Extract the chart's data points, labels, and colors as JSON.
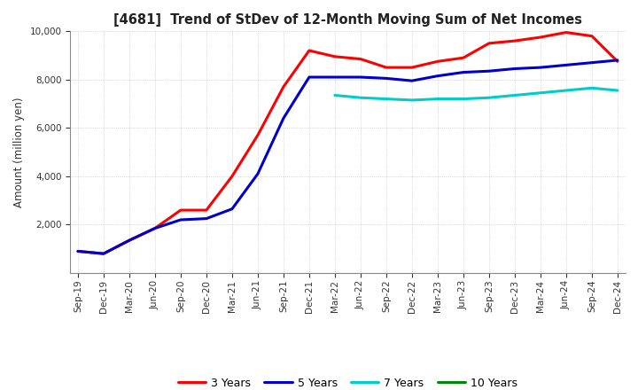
{
  "title": "[4681]  Trend of StDev of 12-Month Moving Sum of Net Incomes",
  "ylabel": "Amount (million yen)",
  "ylim": [
    0,
    10000
  ],
  "yticks": [
    2000,
    4000,
    6000,
    8000,
    10000
  ],
  "background_color": "#ffffff",
  "grid_color": "#aaaaaa",
  "legend_labels": [
    "3 Years",
    "5 Years",
    "7 Years",
    "10 Years"
  ],
  "legend_colors": [
    "#ff0000",
    "#0000cc",
    "#00cccc",
    "#008800"
  ],
  "x_labels": [
    "Sep-19",
    "Dec-19",
    "Mar-20",
    "Jun-20",
    "Sep-20",
    "Dec-20",
    "Mar-21",
    "Jun-21",
    "Sep-21",
    "Dec-21",
    "Mar-22",
    "Jun-22",
    "Sep-22",
    "Dec-22",
    "Mar-23",
    "Jun-23",
    "Sep-23",
    "Dec-23",
    "Mar-24",
    "Jun-24",
    "Sep-24",
    "Dec-24"
  ],
  "series": {
    "3yr": [
      900,
      800,
      1350,
      1850,
      2600,
      2600,
      4000,
      5700,
      7700,
      9200,
      8950,
      8850,
      8500,
      8500,
      8750,
      8900,
      9500,
      9600,
      9750,
      9950,
      9800,
      8750
    ],
    "5yr": [
      900,
      800,
      1350,
      1850,
      2200,
      2250,
      2650,
      4100,
      6400,
      8100,
      8100,
      8100,
      8050,
      7950,
      8150,
      8300,
      8350,
      8450,
      8500,
      8600,
      8700,
      8800
    ],
    "7yr": [
      null,
      null,
      null,
      null,
      null,
      null,
      null,
      null,
      null,
      null,
      7350,
      7250,
      7200,
      7150,
      7200,
      7200,
      7250,
      7350,
      7450,
      7550,
      7650,
      7550
    ],
    "10yr": [
      null,
      null,
      null,
      null,
      null,
      null,
      null,
      null,
      null,
      null,
      null,
      null,
      null,
      null,
      null,
      null,
      null,
      null,
      null,
      null,
      null,
      null
    ]
  }
}
